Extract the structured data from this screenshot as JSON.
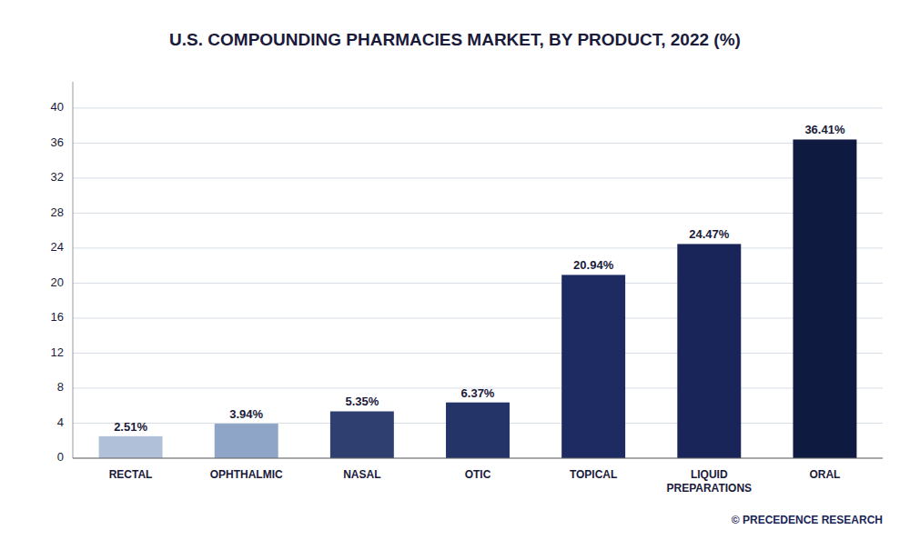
{
  "chart_data": {
    "type": "bar",
    "title": "U.S. COMPOUNDING PHARMACIES MARKET, BY PRODUCT, 2022 (%)",
    "categories": [
      "RECTAL",
      "OPHTHALMIC",
      "NASAL",
      "OTIC",
      "TOPICAL",
      "LIQUID\nPREPARATIONS",
      "ORAL"
    ],
    "values": [
      2.51,
      3.94,
      5.35,
      6.37,
      20.94,
      24.47,
      36.41
    ],
    "value_labels": [
      "2.51%",
      "3.94%",
      "5.35%",
      "6.37%",
      "20.94%",
      "24.47%",
      "36.41%"
    ],
    "colors": [
      "#b0c0d8",
      "#8ea5c8",
      "#2e3f70",
      "#243368",
      "#1d2b62",
      "#192458",
      "#0f1a40"
    ],
    "ylim": [
      0,
      43
    ],
    "yticks": [
      0,
      4,
      8,
      12,
      16,
      20,
      24,
      28,
      32,
      36,
      40
    ],
    "grid": true,
    "data_labels": true,
    "annotations": [
      "© PRECEDENCE RESEARCH"
    ]
  }
}
